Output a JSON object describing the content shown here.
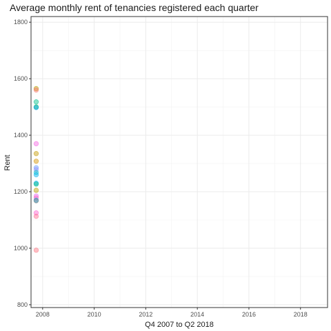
{
  "chart_data": {
    "type": "scatter",
    "title": "Average monthly rent of tenancies registered each quarter",
    "xlabel": "Q4 2007 to Q2 2018",
    "ylabel": "Rent",
    "xlim": [
      2007.55,
      2019.05
    ],
    "ylim": [
      790,
      1820
    ],
    "xticks": [
      2008,
      2010,
      2012,
      2014,
      2016,
      2018
    ],
    "yticks": [
      800,
      1000,
      1200,
      1400,
      1600,
      1800
    ],
    "xtick_labels": [
      "2008",
      "2010",
      "2012",
      "2014",
      "2016",
      "2018"
    ],
    "ytick_labels": [
      "800",
      "1000",
      "1200",
      "1400",
      "1600",
      "1800"
    ],
    "grid": true,
    "legend": "none",
    "points": [
      {
        "x": 2007.75,
        "y": 1565,
        "color": "#b79f00"
      },
      {
        "x": 2007.75,
        "y": 1560,
        "color": "#f8766d"
      },
      {
        "x": 2007.75,
        "y": 1518,
        "color": "#00c08b"
      },
      {
        "x": 2007.75,
        "y": 1500,
        "color": "#00ba38"
      },
      {
        "x": 2007.75,
        "y": 1498,
        "color": "#00a5ff"
      },
      {
        "x": 2007.75,
        "y": 1370,
        "color": "#f564e3"
      },
      {
        "x": 2007.75,
        "y": 1335,
        "color": "#c49a00"
      },
      {
        "x": 2007.75,
        "y": 1308,
        "color": "#d39200"
      },
      {
        "x": 2007.75,
        "y": 1285,
        "color": "#619cff"
      },
      {
        "x": 2007.75,
        "y": 1278,
        "color": "#9590ff"
      },
      {
        "x": 2007.75,
        "y": 1268,
        "color": "#00bfc4"
      },
      {
        "x": 2007.75,
        "y": 1260,
        "color": "#00b4f0"
      },
      {
        "x": 2007.75,
        "y": 1230,
        "color": "#00a9ff"
      },
      {
        "x": 2007.75,
        "y": 1227,
        "color": "#00bf7d"
      },
      {
        "x": 2007.75,
        "y": 1205,
        "color": "#b79f00"
      },
      {
        "x": 2007.75,
        "y": 1185,
        "color": "#e76bf3"
      },
      {
        "x": 2007.75,
        "y": 1178,
        "color": "#ff62bc"
      },
      {
        "x": 2007.75,
        "y": 1170,
        "color": "#00b0f6"
      },
      {
        "x": 2007.75,
        "y": 1168,
        "color": "#7f7f7f"
      },
      {
        "x": 2007.75,
        "y": 1125,
        "color": "#fd61d1"
      },
      {
        "x": 2007.75,
        "y": 1113,
        "color": "#ff6c91"
      },
      {
        "x": 2007.75,
        "y": 993,
        "color": "#fc717f"
      }
    ]
  }
}
